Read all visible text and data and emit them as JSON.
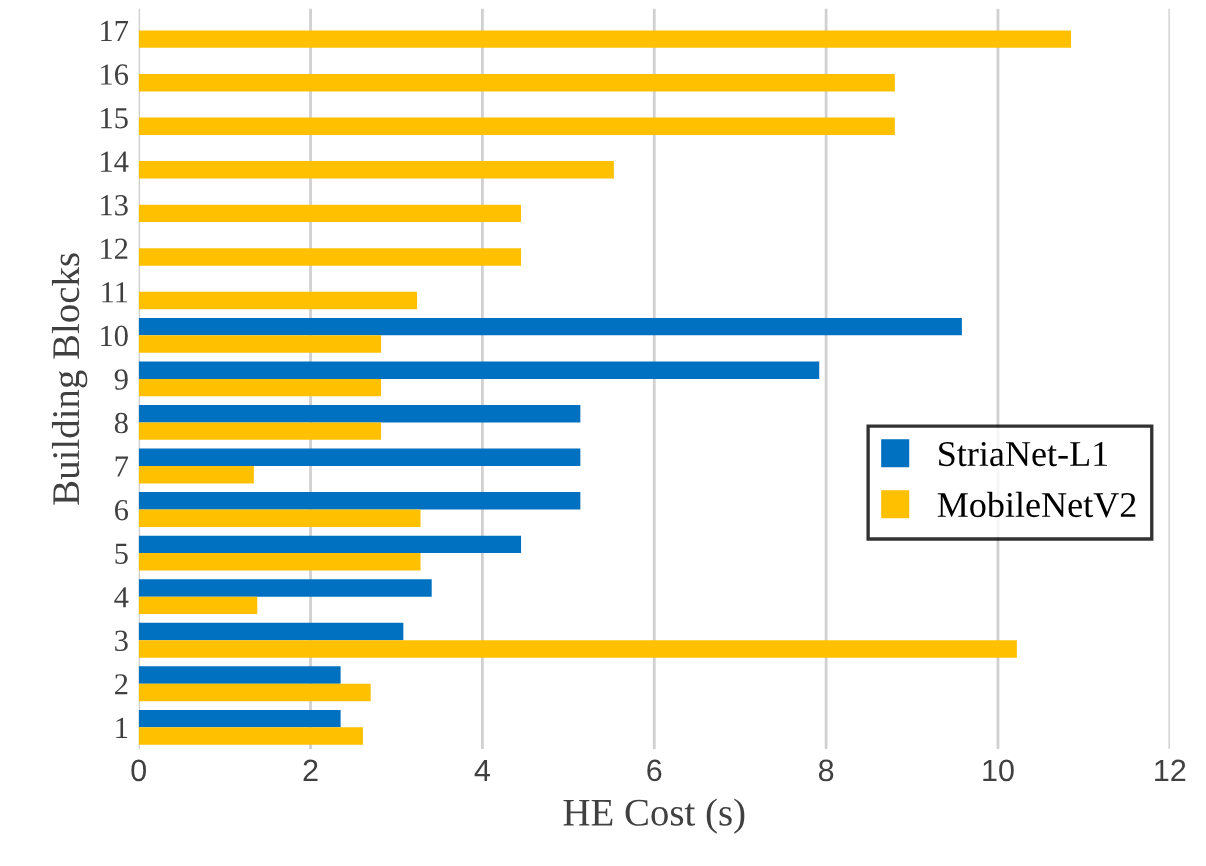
{
  "chart_data": {
    "type": "bar",
    "orientation": "horizontal",
    "xlabel": "HE Cost (s)",
    "ylabel": "Building Blocks",
    "categories": [
      "17",
      "16",
      "15",
      "14",
      "13",
      "12",
      "11",
      "10",
      "9",
      "8",
      "7",
      "6",
      "5",
      "4",
      "3",
      "2",
      "1"
    ],
    "series": [
      {
        "name": "StriaNet-L1",
        "color": "#0070c0",
        "values": [
          null,
          null,
          null,
          null,
          null,
          null,
          null,
          9.58,
          7.92,
          5.14,
          5.14,
          5.14,
          4.45,
          3.41,
          3.08,
          2.35,
          2.35
        ]
      },
      {
        "name": "MobileNetV2",
        "color": "#ffc000",
        "values": [
          10.85,
          8.8,
          8.8,
          5.53,
          4.45,
          4.45,
          3.24,
          2.82,
          2.82,
          2.82,
          1.34,
          3.28,
          3.28,
          1.38,
          10.22,
          2.7,
          2.61
        ]
      }
    ],
    "xlim": [
      0,
      12
    ],
    "xticks": [
      0,
      2,
      4,
      6,
      8,
      10,
      12
    ],
    "grid": "x",
    "legend": "right"
  }
}
